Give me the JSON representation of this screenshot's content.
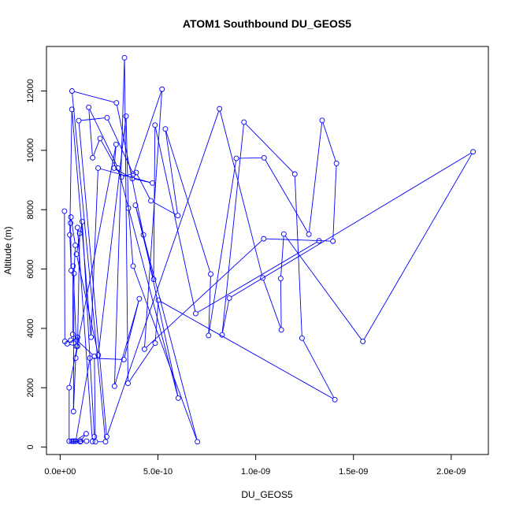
{
  "chart_data": {
    "type": "scatter",
    "title": "ATOM1 Southbound DU_GEOS5",
    "xlabel": "DU_GEOS5",
    "ylabel": "Altitude (m)",
    "xlim": [
      -7e-11,
      2.19e-09
    ],
    "ylim": [
      -250,
      13500
    ],
    "xticks": [
      0,
      5e-10,
      1e-09,
      1.5e-09,
      2e-09
    ],
    "xtick_labels": [
      "0.0e+00",
      "5.0e-10",
      "1.0e-09",
      "1.5e-09",
      "2.0e-09"
    ],
    "yticks": [
      0,
      2000,
      4000,
      6000,
      8000,
      10000,
      12000
    ],
    "ytick_labels": [
      "0",
      "2000",
      "4000",
      "6000",
      "8000",
      "10000",
      "12000"
    ],
    "grid": false,
    "connect_points": true,
    "series": [
      {
        "color": "#0000ff",
        "marker": "open-circle",
        "x": [
          2.2e-11,
          2.4e-11,
          5.4e-11,
          6.4e-11,
          6.6e-11,
          8.3e-11,
          3.6e-11,
          8.9e-11,
          8.6e-11,
          1.75e-10,
          1.8e-10,
          2.32e-10,
          6.04e-11,
          2.88e-10,
          4.26e-10,
          6.04e-10,
          2.96e-10,
          1.46e-10,
          1.66e-10,
          2.04e-10,
          3.13e-10,
          3.89e-10,
          4.64e-10,
          6.02e-10,
          5.38e-10,
          7.7e-10,
          7.59e-10,
          9.01e-10,
          1.043e-09,
          1.272e-09,
          1.34e-09,
          1.413e-09,
          1.395e-09,
          1.041e-09,
          4.31e-10,
          5.21e-10,
          3.74e-10,
          2.4e-10,
          9.5e-11,
          2.38e-10,
          8.15e-10,
          1.036e-09,
          1.131e-09,
          1.128e-09,
          1.144e-09,
          1.548e-09,
          2.112e-09,
          8.65e-10,
          8.28e-10,
          9.4e-10,
          1.2e-09,
          1.237e-09,
          1.405e-09,
          5.02e-10,
          4.86e-10,
          3.47e-10,
          3.29e-10,
          2.78e-10,
          4.05e-10,
          3.26e-10,
          1.52e-10,
          8e-11,
          1.35e-10,
          6.6e-11,
          5.9e-11,
          1.06e-10,
          7.3e-11,
          1.33e-10,
          1.02e-10,
          4.6e-11,
          4.6e-11,
          2.86e-10,
          2.76e-10,
          3.69e-10,
          4.72e-10,
          1.94e-10,
          1.58e-10,
          5.99e-11,
          4.93e-11,
          5.67e-11,
          5.32e-11,
          5.52e-11,
          7.75e-11,
          7.09e-11,
          6.8e-11,
          7.94e-11,
          8.89e-11,
          9.97e-11,
          8.84e-11,
          1.65e-10,
          1.75e-10,
          1.13e-10,
          8.35e-11,
          1.95e-10,
          3.37e-10,
          3.49e-10,
          3.73e-10,
          7.02e-10,
          3.85e-10,
          4.78e-10,
          4.85e-10,
          6.93e-10,
          1.324e-09
        ],
        "y": [
          7950,
          3560,
          3600,
          3800,
          6100,
          3400,
          3480,
          3700,
          3600,
          3060,
          180,
          180,
          12000,
          11600,
          7150,
          1650,
          9400,
          11450,
          9750,
          10400,
          9100,
          9250,
          8300,
          7800,
          10720,
          5830,
          3760,
          9730,
          9750,
          7170,
          11010,
          9560,
          6940,
          7020,
          3300,
          12060,
          9200,
          11100,
          11000,
          350,
          11400,
          5700,
          3950,
          5680,
          7180,
          3560,
          9950,
          5020,
          3780,
          10950,
          9200,
          3670,
          1600,
          4950,
          3500,
          2150,
          13120,
          2050,
          5000,
          2950,
          3000,
          200,
          200,
          200,
          200,
          200,
          200,
          450,
          180,
          200,
          2000,
          10200,
          9400,
          9050,
          8900,
          9400,
          3700,
          11380,
          7150,
          5950,
          7550,
          7750,
          6800,
          5850,
          1200,
          3000,
          3400,
          7200,
          7400,
          190,
          350,
          7600,
          6500,
          3100,
          11150,
          8050,
          6100,
          180,
          8150,
          5650,
          10850,
          4500,
          6950
        ]
      }
    ]
  }
}
